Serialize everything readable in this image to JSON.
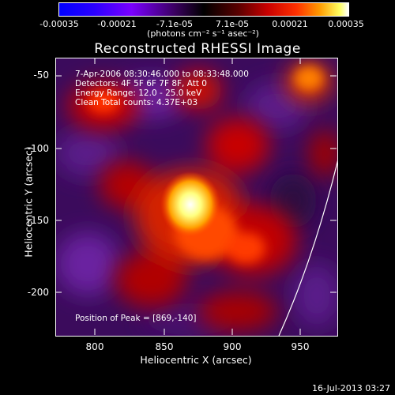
{
  "colorbar": {
    "ticks": [
      "-0.00035",
      "-0.00021",
      "-7.1e-05",
      "7.1e-05",
      "0.00021",
      "0.00035"
    ],
    "unit_label": "(photons cm⁻² s⁻¹ asec⁻²)"
  },
  "title": "Reconstructed RHESSI Image",
  "info": {
    "time_range": "7-Apr-2006 08:30:46.000 to 08:33:48.000",
    "detectors": "Detectors: 4F 5F 6F 7F 8F, Att 0",
    "energy": "Energy Range: 12.0 - 25.0 keV",
    "clean": "Clean    Total counts: 4.37E+03",
    "peak": "Position of Peak = [869,-140]"
  },
  "axes": {
    "xlabel": "Heliocentric X (arcsec)",
    "ylabel": "Heliocentric Y (arcsec)",
    "xticks": [
      "800",
      "850",
      "900",
      "950"
    ],
    "yticks": [
      "-50",
      "-100",
      "-150",
      "-200"
    ]
  },
  "footer_date": "16-Jul-2013 03:27"
}
